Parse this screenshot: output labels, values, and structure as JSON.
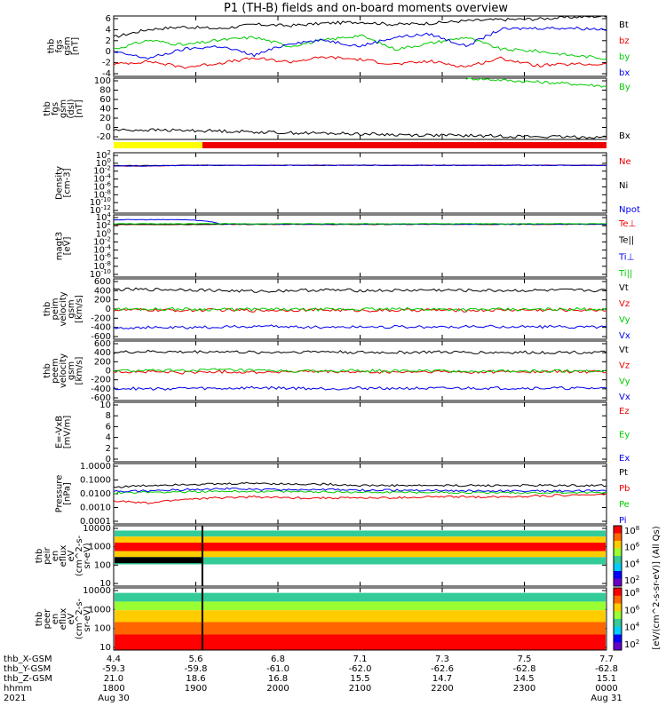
{
  "title": "P1 (TH-B) fields and on-board moments overview",
  "colors": {
    "black": "#000000",
    "red": "#ee0000",
    "green": "#00cc00",
    "blue": "#0000ee",
    "yellow": "#ffff00"
  },
  "chart_data": [
    {
      "type": "line",
      "panel": "fgs",
      "ylabel": [
        "thb",
        "fgs",
        "gsm",
        "[nT]"
      ],
      "yticks": [
        "6",
        "4",
        "2",
        "0",
        "-2",
        "-4"
      ],
      "ylim": [
        -4,
        6
      ],
      "series": [
        {
          "name": "Bt",
          "color": "#000000",
          "y": [
            2.5,
            3.8,
            4.2,
            3.9,
            4.6,
            4.4,
            4.8,
            5.0,
            4.6,
            4.8,
            5.2,
            5.4,
            5.5,
            5.8,
            6.0
          ]
        },
        {
          "name": "bz",
          "color": "#ee0000",
          "y": [
            -2.0,
            -1.5,
            -2.5,
            -1.8,
            -1.0,
            -1.6,
            -0.8,
            -1.2,
            -2.0,
            -1.5,
            -2.4,
            -1.0,
            -2.2,
            -2.0,
            -2.0
          ]
        },
        {
          "name": "by",
          "color": "#00cc00",
          "y": [
            0.5,
            2.0,
            1.2,
            2.0,
            2.5,
            1.0,
            2.0,
            2.8,
            0.5,
            1.5,
            2.5,
            0.5,
            0.2,
            -0.5,
            -1.0
          ]
        },
        {
          "name": "bx",
          "color": "#0000ee",
          "y": [
            0.0,
            -1.0,
            0.5,
            1.0,
            -0.5,
            1.5,
            2.0,
            1.0,
            2.5,
            3.0,
            1.0,
            3.8,
            4.0,
            4.0,
            3.8
          ]
        }
      ]
    },
    {
      "type": "line",
      "panel": "fgs_dsl",
      "ylabel": [
        "thb",
        "fgs",
        "gsm",
        "(dsl)",
        "[nT]"
      ],
      "yticks": [
        "100",
        "80",
        "60",
        "40",
        "20",
        "0",
        "-20"
      ],
      "ylim": [
        -30,
        100
      ],
      "series": [
        {
          "name": "By",
          "color": "#00cc00",
          "note": "visible only after ~22:00",
          "y": [
            null,
            null,
            null,
            null,
            null,
            null,
            null,
            null,
            null,
            null,
            100,
            96,
            92,
            88,
            83
          ]
        },
        {
          "name": "Bx",
          "color": "#000000",
          "y": [
            -10,
            -10,
            -11,
            -12,
            -14,
            -16,
            -17,
            -18,
            -20,
            -21,
            -22,
            -23,
            -24,
            -25,
            -25
          ]
        }
      ]
    },
    {
      "type": "line",
      "panel": "density",
      "scale": "log",
      "ylabel": [
        "Density",
        "[cm-3]"
      ],
      "yticks": [
        "10^2",
        "10^0",
        "10^-2",
        "10^-4",
        "10^-6",
        "10^-8",
        "10^-10",
        "10^-12"
      ],
      "series": [
        {
          "name": "Ne",
          "color": "#ee0000",
          "y": [
            0.2,
            0.2,
            0.3,
            0.3,
            0.3,
            0.3,
            0.3,
            0.3,
            0.3,
            0.3,
            0.3,
            0.3,
            0.3,
            0.3,
            0.3
          ]
        },
        {
          "name": "Ni",
          "color": "#000000",
          "y": [
            0.25,
            0.25,
            0.3,
            0.3,
            0.3,
            0.3,
            0.3,
            0.3,
            0.3,
            0.3,
            0.3,
            0.3,
            0.3,
            0.3,
            0.3
          ]
        },
        {
          "name": "Npot",
          "color": "#0000ee",
          "y": [
            0.2,
            0.2,
            0.3,
            0.3,
            0.3,
            0.3,
            0.3,
            0.3,
            0.3,
            0.3,
            0.3,
            0.3,
            0.3,
            0.3,
            0.3
          ]
        }
      ]
    },
    {
      "type": "line",
      "panel": "temperature",
      "scale": "log",
      "ylabel": [
        "magt3",
        "[eV]"
      ],
      "yticks": [
        "10^4",
        "10^2",
        "10^0",
        "10^-2",
        "10^-4",
        "10^-6",
        "10^-8",
        "10^-10"
      ],
      "series": [
        {
          "name": "Te⊥",
          "color": "#ee0000",
          "y": [
            200,
            200,
            200,
            220,
            220,
            220,
            220,
            220,
            220,
            220,
            220,
            220,
            220,
            220,
            220
          ]
        },
        {
          "name": "Te||",
          "color": "#000000",
          "y": [
            200,
            200,
            200,
            220,
            220,
            220,
            220,
            220,
            220,
            220,
            220,
            220,
            220,
            220,
            220
          ]
        },
        {
          "name": "Ti⊥",
          "color": "#0000ee",
          "y": [
            3000,
            3000,
            3000,
            300,
            250,
            250,
            250,
            250,
            250,
            250,
            250,
            250,
            250,
            250,
            250
          ]
        },
        {
          "name": "Ti||",
          "color": "#00cc00",
          "y": [
            300,
            300,
            300,
            320,
            300,
            300,
            300,
            300,
            300,
            300,
            300,
            300,
            300,
            300,
            300
          ]
        }
      ]
    },
    {
      "type": "line",
      "panel": "peim",
      "ylabel": [
        "thb",
        "peim",
        "velocity",
        "gsm",
        "[km/s]"
      ],
      "yticks": [
        "600",
        "400",
        "200",
        "0",
        "-200",
        "-400",
        "-600"
      ],
      "ylim": [
        -650,
        650
      ],
      "series": [
        {
          "name": "Vt",
          "color": "#000000",
          "y": [
            420,
            420,
            420,
            400,
            380,
            400,
            410,
            400,
            400,
            410,
            400,
            400,
            400,
            405,
            400
          ]
        },
        {
          "name": "Vz",
          "color": "#ee0000",
          "y": [
            -20,
            -20,
            -30,
            -20,
            -30,
            -20,
            -20,
            -30,
            -30,
            -20,
            -30,
            -20,
            -20,
            -20,
            -20
          ]
        },
        {
          "name": "Vy",
          "color": "#00cc00",
          "y": [
            0,
            0,
            0,
            -10,
            -5,
            -10,
            -10,
            0,
            -5,
            0,
            -10,
            -10,
            -10,
            0,
            0
          ]
        },
        {
          "name": "Vx",
          "color": "#0000ee",
          "y": [
            -400,
            -400,
            -400,
            -390,
            -370,
            -380,
            -390,
            -380,
            -380,
            -390,
            -380,
            -380,
            -380,
            -385,
            -380
          ]
        }
      ]
    },
    {
      "type": "line",
      "panel": "peem",
      "ylabel": [
        "thb",
        "peem",
        "velocity",
        "gsm",
        "[km/s]"
      ],
      "yticks": [
        "600",
        "400",
        "200",
        "0",
        "-200",
        "-400",
        "-600"
      ],
      "ylim": [
        -650,
        650
      ],
      "series": [
        {
          "name": "Vt",
          "color": "#000000",
          "y": [
            400,
            420,
            410,
            420,
            400,
            410,
            420,
            400,
            400,
            410,
            400,
            400,
            400,
            405,
            400
          ]
        },
        {
          "name": "Vz",
          "color": "#ee0000",
          "y": [
            -20,
            -20,
            -40,
            -20,
            -30,
            -20,
            -20,
            -30,
            -30,
            -20,
            -30,
            -20,
            -20,
            -20,
            -20
          ]
        },
        {
          "name": "Vy",
          "color": "#00cc00",
          "y": [
            0,
            0,
            10,
            20,
            0,
            -10,
            -10,
            0,
            -5,
            0,
            -10,
            -10,
            -10,
            0,
            0
          ]
        },
        {
          "name": "Vx",
          "color": "#0000ee",
          "y": [
            -380,
            -400,
            -380,
            -390,
            -370,
            -380,
            -390,
            -380,
            -380,
            -390,
            -380,
            -380,
            -380,
            -385,
            -380
          ]
        }
      ]
    },
    {
      "type": "line",
      "panel": "efield",
      "ylabel": [
        "E=-VxB",
        "[mV/m]"
      ],
      "yticks": [
        "10",
        "8",
        "6",
        "4",
        "2",
        "0"
      ],
      "ylim": [
        0,
        10
      ],
      "series": [
        {
          "name": "Ez",
          "color": "#ee0000",
          "y": []
        },
        {
          "name": "Ey",
          "color": "#00cc00",
          "y": []
        },
        {
          "name": "Ex",
          "color": "#0000ee",
          "y": []
        }
      ]
    },
    {
      "type": "line",
      "panel": "pressure",
      "scale": "log",
      "ylabel": [
        "Pressure",
        "[nPa]"
      ],
      "yticks": [
        "1.0000",
        "0.1000",
        "0.0100",
        "0.0010",
        "0.0001"
      ],
      "series": [
        {
          "name": "Pt",
          "color": "#000000",
          "y": [
            0.03,
            0.04,
            0.05,
            0.05,
            0.06,
            0.05,
            0.05,
            0.04,
            0.04,
            0.04,
            0.04,
            0.04,
            0.04,
            0.04,
            0.04
          ]
        },
        {
          "name": "Pb",
          "color": "#ee0000",
          "y": [
            0.003,
            0.002,
            0.004,
            0.005,
            0.006,
            0.005,
            0.005,
            0.005,
            0.005,
            0.006,
            0.006,
            0.006,
            0.007,
            0.008,
            0.009
          ]
        },
        {
          "name": "Pe",
          "color": "#00cc00",
          "y": [
            0.012,
            0.013,
            0.014,
            0.015,
            0.015,
            0.014,
            0.014,
            0.013,
            0.013,
            0.013,
            0.012,
            0.012,
            0.012,
            0.012,
            0.012
          ]
        },
        {
          "name": "Pi",
          "color": "#0000ee",
          "y": [
            0.015,
            0.016,
            0.02,
            0.025,
            0.02,
            0.02,
            0.02,
            0.018,
            0.018,
            0.018,
            0.016,
            0.016,
            0.016,
            0.016,
            0.016
          ]
        }
      ]
    },
    {
      "type": "heatmap",
      "panel": "peir",
      "ylabel": [
        "thb",
        "peir",
        "en",
        "eflux",
        "eV",
        "(cm^2-s-",
        "sr-eV)"
      ],
      "yticks": [
        "10000",
        "1000",
        "100",
        "10"
      ]
    },
    {
      "type": "heatmap",
      "panel": "peer",
      "ylabel": [
        "thb",
        "peer",
        "en",
        "eflux",
        "eV",
        "(cm^2-s-",
        "sr-eV)"
      ],
      "yticks": [
        "10000",
        "1000",
        "100",
        "10"
      ]
    }
  ],
  "colorbar": {
    "label": "[eV/(cm^2-s-sr-eV)] (All Qs)",
    "ticks_top": [
      "10^8",
      "10^6",
      "10^4",
      "10^2"
    ],
    "ticks_bottom": [
      "10^8",
      "10^6",
      "10^4",
      "10^2"
    ]
  },
  "xaxis": {
    "rows": [
      {
        "label": "thb_X-GSM",
        "values": [
          "4.4",
          "5.6",
          "6.8",
          "7.1",
          "7.3",
          "7.5",
          "7.7"
        ]
      },
      {
        "label": "thb_Y-GSM",
        "values": [
          "-59.3",
          "-59.8",
          "-61.0",
          "-62.0",
          "-62.6",
          "-62.8",
          "-62.8"
        ]
      },
      {
        "label": "thb_Z-GSM",
        "values": [
          "21.0",
          "18.6",
          "16.8",
          "15.5",
          "14.7",
          "14.5",
          "15.1"
        ]
      },
      {
        "label": "hhmm",
        "values": [
          "1800",
          "1900",
          "2000",
          "2100",
          "2200",
          "2300",
          "0000"
        ]
      }
    ],
    "year": "2021",
    "date_start": "Aug 30",
    "date_end": "Aug 31"
  }
}
